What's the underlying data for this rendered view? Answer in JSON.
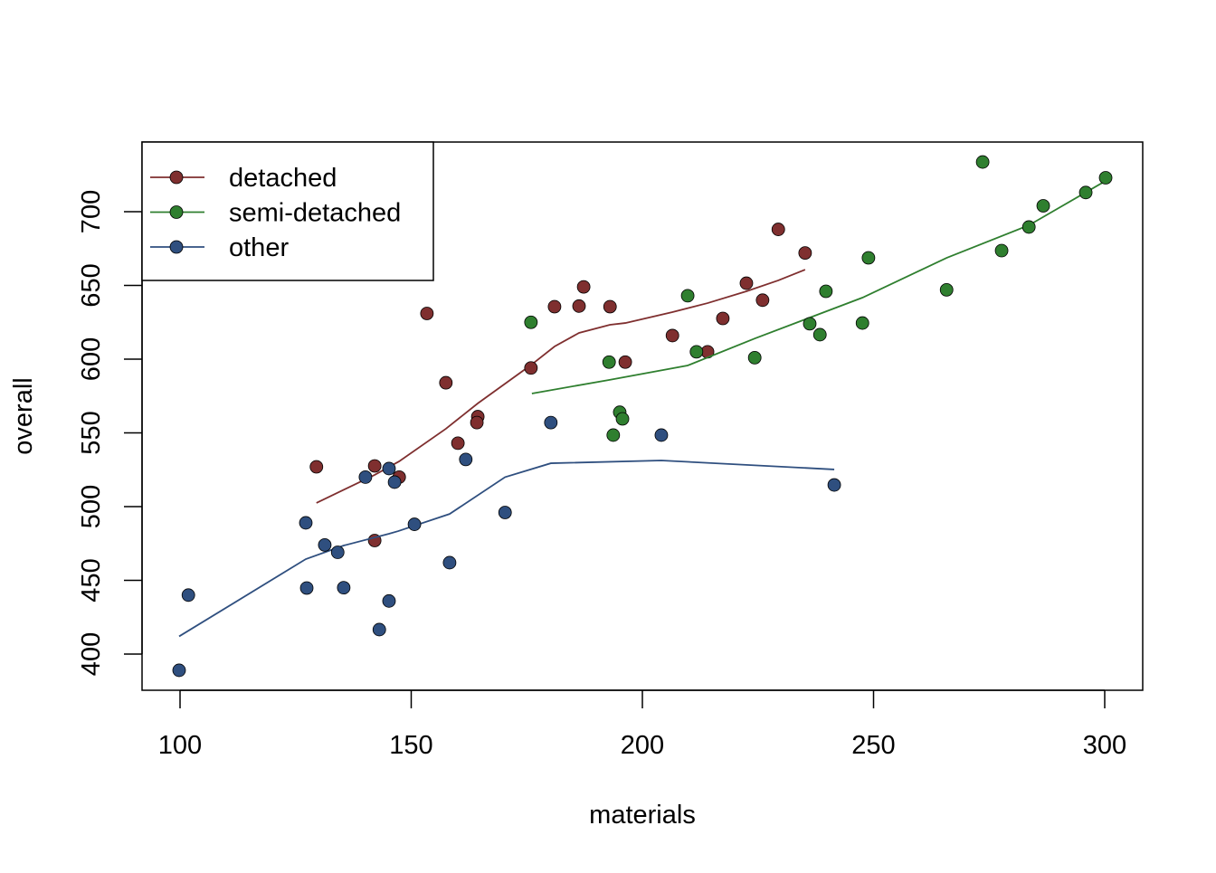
{
  "chart_data": {
    "type": "scatter",
    "xlabel": "materials",
    "ylabel": "overall",
    "xlim": [
      92,
      308
    ],
    "ylim": [
      377,
      748
    ],
    "xticks": [
      100,
      150,
      200,
      250,
      300
    ],
    "yticks": [
      400,
      450,
      500,
      550,
      600,
      650,
      700
    ],
    "grid": false,
    "legend_position": "top-left",
    "series": [
      {
        "name": "detached",
        "color": "#7f2f2f",
        "points": [
          [
            129.5,
            527
          ],
          [
            142.1,
            527.6
          ],
          [
            147.4,
            520
          ],
          [
            142.1,
            477
          ],
          [
            153.4,
            631
          ],
          [
            157.5,
            584
          ],
          [
            160.1,
            543
          ],
          [
            164.4,
            561
          ],
          [
            164.2,
            557
          ],
          [
            175.9,
            594
          ],
          [
            181.0,
            635.6
          ],
          [
            186.3,
            636
          ],
          [
            187.3,
            649
          ],
          [
            193.0,
            635.6
          ],
          [
            196.3,
            598
          ],
          [
            206.5,
            616
          ],
          [
            214.1,
            605
          ],
          [
            217.4,
            627.6
          ],
          [
            222.5,
            651.5
          ],
          [
            226.0,
            640
          ],
          [
            229.4,
            688
          ],
          [
            235.2,
            672
          ]
        ],
        "smooth": [
          [
            129.5,
            502.5
          ],
          [
            142.1,
            521.5
          ],
          [
            147.4,
            530.7
          ],
          [
            157.5,
            552.8
          ],
          [
            164.4,
            570
          ],
          [
            175.9,
            596
          ],
          [
            181.0,
            608.6
          ],
          [
            186.3,
            617.8
          ],
          [
            193.0,
            623.3
          ],
          [
            196.3,
            624.5
          ],
          [
            206.5,
            631.9
          ],
          [
            214.1,
            638
          ],
          [
            222.5,
            646
          ],
          [
            229.4,
            653.4
          ],
          [
            235.2,
            660.7
          ]
        ]
      },
      {
        "name": "semi-detached",
        "color": "#2f7f2f",
        "points": [
          [
            175.9,
            625
          ],
          [
            192.8,
            598
          ],
          [
            193.7,
            548.5
          ],
          [
            195.1,
            564
          ],
          [
            195.7,
            559.5
          ],
          [
            209.8,
            643
          ],
          [
            211.7,
            605
          ],
          [
            224.3,
            601
          ],
          [
            236.2,
            624
          ],
          [
            238.4,
            616.6
          ],
          [
            239.7,
            646
          ],
          [
            247.6,
            624.5
          ],
          [
            248.9,
            668.7
          ],
          [
            265.8,
            647
          ],
          [
            273.6,
            733.7
          ],
          [
            277.7,
            673.6
          ],
          [
            283.6,
            689.6
          ],
          [
            286.7,
            704
          ],
          [
            295.9,
            713
          ],
          [
            300.2,
            723
          ]
        ],
        "smooth": [
          [
            176.1,
            576.7
          ],
          [
            192.8,
            585.9
          ],
          [
            209.8,
            595.7
          ],
          [
            224.3,
            614
          ],
          [
            247.6,
            641.7
          ],
          [
            265.8,
            668.7
          ],
          [
            283.6,
            690.8
          ],
          [
            300.2,
            720.9
          ]
        ]
      },
      {
        "name": "other",
        "color": "#2f4f7f",
        "points": [
          [
            99.8,
            389
          ],
          [
            101.8,
            440
          ],
          [
            127.2,
            489
          ],
          [
            127.4,
            444.8
          ],
          [
            131.3,
            474
          ],
          [
            134.1,
            469
          ],
          [
            135.4,
            445
          ],
          [
            140.1,
            520
          ],
          [
            143.1,
            416.6
          ],
          [
            145.2,
            436
          ],
          [
            145.2,
            525.8
          ],
          [
            146.4,
            516.6
          ],
          [
            150.7,
            488
          ],
          [
            158.3,
            462
          ],
          [
            161.8,
            532
          ],
          [
            170.3,
            496
          ],
          [
            180.2,
            557
          ],
          [
            204.1,
            548.5
          ],
          [
            241.5,
            514.7
          ]
        ],
        "smooth": [
          [
            99.8,
            412
          ],
          [
            127.2,
            464.4
          ],
          [
            135.4,
            473.6
          ],
          [
            145.2,
            481.6
          ],
          [
            147.2,
            483.4
          ],
          [
            158.3,
            495
          ],
          [
            170.3,
            520
          ],
          [
            180.2,
            529.4
          ],
          [
            204.1,
            531.3
          ],
          [
            241.5,
            525.2
          ]
        ]
      }
    ]
  }
}
